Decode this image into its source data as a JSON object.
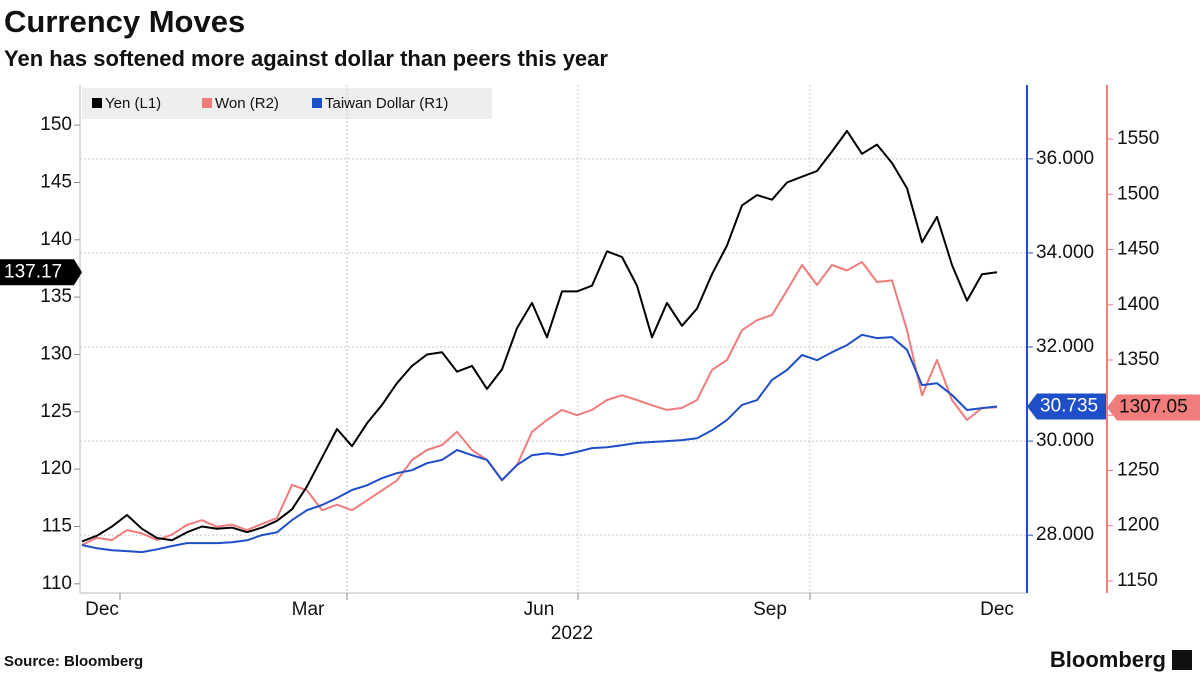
{
  "chart_data": {
    "type": "line",
    "title": "Currency Moves",
    "subtitle": "Yen has softened more against dollar than peers this year",
    "source": "Source: Bloomberg",
    "brand": "Bloomberg",
    "xticks": [
      "Dec",
      "Mar",
      "Jun",
      "Sep",
      "Dec"
    ],
    "xlabel": "2022",
    "ylim": [
      109.2,
      153.5
    ],
    "yticks": [
      110,
      115,
      120,
      125,
      130,
      135,
      140,
      145,
      150
    ],
    "y2lim": [
      26.77,
      37.57
    ],
    "y2ticks": [
      {
        "value": 28,
        "label": "28.000"
      },
      {
        "value": 30,
        "label": "30.000"
      },
      {
        "value": 32,
        "label": "32.000"
      },
      {
        "value": 34,
        "label": "34.000"
      },
      {
        "value": 36,
        "label": "36.000"
      }
    ],
    "y3lim": [
      1139.1,
      1598.9
    ],
    "y3ticks": [
      1150,
      1200,
      1250,
      1300,
      1350,
      1400,
      1450,
      1500,
      1550
    ],
    "grid": true,
    "series": [
      {
        "name": "Yen (L1)",
        "color": "#000000",
        "axis": "y",
        "last_label": "137.17",
        "values": [
          113.7,
          114.2,
          115,
          116,
          114.8,
          114,
          113.8,
          114.5,
          115,
          114.8,
          114.9,
          114.5,
          114.9,
          115.5,
          116.5,
          118.5,
          121,
          123.5,
          122,
          124,
          125.6,
          127.5,
          129,
          130,
          130.2,
          128.5,
          129,
          127,
          128.7,
          132.3,
          134.5,
          131.5,
          135.5,
          135.5,
          136,
          139,
          138.5,
          136,
          131.5,
          134.5,
          132.5,
          134,
          137,
          139.5,
          143,
          143.9,
          143.5,
          145,
          145.5,
          146,
          147.7,
          149.5,
          147.5,
          148.3,
          146.7,
          144.5,
          139.8,
          142,
          137.8,
          134.7,
          137,
          137.17
        ]
      },
      {
        "name": "Won (R2)",
        "color": "#f07c7c",
        "axis": "y3",
        "last_label": "1307.05",
        "values": [
          1182.6,
          1189,
          1187,
          1196,
          1193,
          1187,
          1192,
          1200.7,
          1205,
          1199,
          1201,
          1196,
          1201.6,
          1207,
          1237,
          1232,
          1214,
          1219,
          1214,
          1223,
          1232,
          1241,
          1259.5,
          1268.5,
          1273,
          1285,
          1268.5,
          1259.5,
          1241,
          1255,
          1285,
          1295.7,
          1304.8,
          1300,
          1304.8,
          1313.8,
          1318,
          1313.8,
          1309,
          1304.8,
          1306.6,
          1313.8,
          1341,
          1350,
          1377,
          1386,
          1390.7,
          1413,
          1436,
          1418,
          1436,
          1431,
          1438.7,
          1420.6,
          1422,
          1377,
          1318,
          1350,
          1313.8,
          1295.7,
          1306.6,
          1307.05
        ]
      },
      {
        "name": "Taiwan Dollar (R1)",
        "color": "#1f4fc8",
        "axis": "y2",
        "last_label": "30.735",
        "values": [
          27.79,
          27.72,
          27.68,
          27.66,
          27.64,
          27.7,
          27.77,
          27.83,
          27.83,
          27.83,
          27.85,
          27.89,
          28.0,
          28.06,
          28.32,
          28.53,
          28.64,
          28.79,
          28.96,
          29.06,
          29.21,
          29.32,
          29.38,
          29.53,
          29.6,
          29.81,
          29.7,
          29.6,
          29.17,
          29.49,
          29.7,
          29.74,
          29.7,
          29.77,
          29.85,
          29.87,
          29.91,
          29.96,
          29.98,
          30.0,
          30.02,
          30.06,
          30.23,
          30.45,
          30.77,
          30.87,
          31.3,
          31.51,
          31.83,
          31.72,
          31.89,
          32.04,
          32.26,
          32.19,
          32.21,
          31.94,
          31.19,
          31.23,
          30.98,
          30.66,
          30.7,
          30.735
        ]
      }
    ]
  }
}
